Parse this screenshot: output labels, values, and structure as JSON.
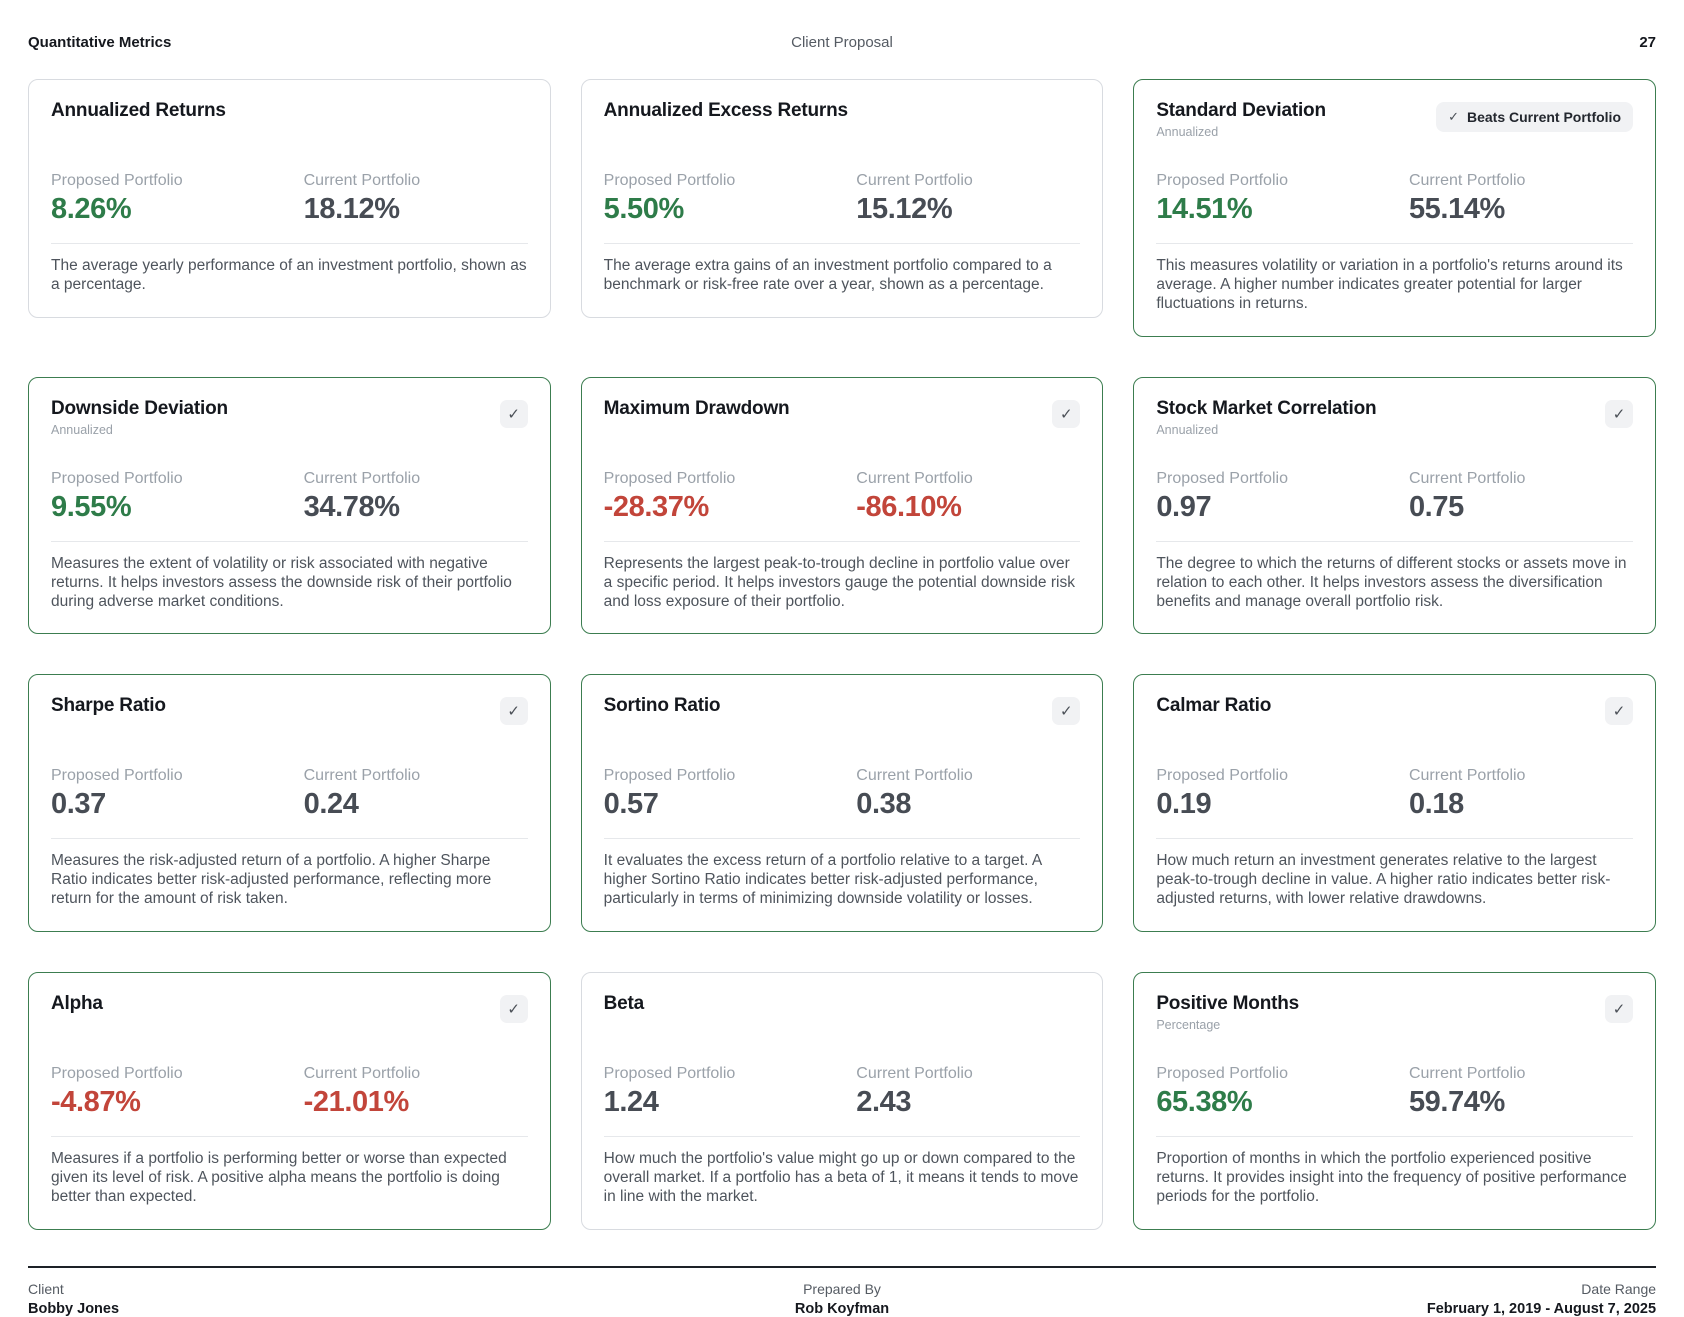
{
  "header": {
    "left": "Quantitative Metrics",
    "center": "Client Proposal",
    "page": "27"
  },
  "labels": {
    "proposed": "Proposed Portfolio",
    "current": "Current Portfolio"
  },
  "badge": {
    "check": "✓",
    "text": "Beats Current Portfolio"
  },
  "check_glyph": "✓",
  "colors": {
    "positive_green": "#2e7c49",
    "negative_red": "#c2453a",
    "neutral_dark": "#474c54",
    "highlight_border_green": "#3c7d50",
    "default_border_gray": "#d8dbe0"
  },
  "cards": [
    {
      "title": "Annualized Returns",
      "subtitle": null,
      "badge": false,
      "check": false,
      "highlight": false,
      "proposed": {
        "value": "8.26%",
        "tone": "green"
      },
      "current": {
        "value": "18.12%",
        "tone": "dark"
      },
      "description": "The average yearly performance of an investment portfolio, shown as a percentage."
    },
    {
      "title": "Annualized Excess Returns",
      "subtitle": null,
      "badge": false,
      "check": false,
      "highlight": false,
      "proposed": {
        "value": "5.50%",
        "tone": "green"
      },
      "current": {
        "value": "15.12%",
        "tone": "dark"
      },
      "description": "The average extra gains of an investment portfolio compared to a benchmark or risk-free rate over a year, shown as a percentage."
    },
    {
      "title": "Standard Deviation",
      "subtitle": "Annualized",
      "badge": true,
      "check": false,
      "highlight": true,
      "proposed": {
        "value": "14.51%",
        "tone": "green"
      },
      "current": {
        "value": "55.14%",
        "tone": "dark"
      },
      "description": "This measures volatility or variation in a portfolio's returns around its average. A higher number indicates greater potential for larger fluctuations in returns."
    },
    {
      "title": "Downside Deviation",
      "subtitle": "Annualized",
      "badge": false,
      "check": true,
      "highlight": true,
      "proposed": {
        "value": "9.55%",
        "tone": "green"
      },
      "current": {
        "value": "34.78%",
        "tone": "dark"
      },
      "description": "Measures the extent of volatility or risk associated with negative returns. It helps investors assess the downside risk of their portfolio during adverse market conditions."
    },
    {
      "title": "Maximum Drawdown",
      "subtitle": null,
      "badge": false,
      "check": true,
      "highlight": true,
      "proposed": {
        "value": "-28.37%",
        "tone": "red"
      },
      "current": {
        "value": "-86.10%",
        "tone": "red"
      },
      "description": "Represents the largest peak-to-trough decline in portfolio value over a specific period. It helps investors gauge the potential downside risk and loss exposure of their portfolio."
    },
    {
      "title": "Stock Market Correlation",
      "subtitle": "Annualized",
      "badge": false,
      "check": true,
      "highlight": true,
      "proposed": {
        "value": "0.97",
        "tone": "dark"
      },
      "current": {
        "value": "0.75",
        "tone": "dark"
      },
      "description": "The degree to which the returns of different stocks or assets move in relation to each other. It helps investors assess the diversification benefits and manage overall portfolio risk."
    },
    {
      "title": "Sharpe Ratio",
      "subtitle": null,
      "badge": false,
      "check": true,
      "highlight": true,
      "proposed": {
        "value": "0.37",
        "tone": "dark"
      },
      "current": {
        "value": "0.24",
        "tone": "dark"
      },
      "description": "Measures the risk-adjusted return of a portfolio. A higher Sharpe Ratio indicates better risk-adjusted performance, reflecting more return for the amount of risk taken."
    },
    {
      "title": "Sortino Ratio",
      "subtitle": null,
      "badge": false,
      "check": true,
      "highlight": true,
      "proposed": {
        "value": "0.57",
        "tone": "dark"
      },
      "current": {
        "value": "0.38",
        "tone": "dark"
      },
      "description": "It evaluates the excess return of a portfolio relative to a target. A higher Sortino Ratio indicates better risk-adjusted performance, particularly in terms of minimizing downside volatility or losses."
    },
    {
      "title": "Calmar Ratio",
      "subtitle": null,
      "badge": false,
      "check": true,
      "highlight": true,
      "proposed": {
        "value": "0.19",
        "tone": "dark"
      },
      "current": {
        "value": "0.18",
        "tone": "dark"
      },
      "description": "How much return an investment generates relative to the largest peak-to-trough decline in value. A higher ratio indicates better risk-adjusted returns, with lower relative drawdowns."
    },
    {
      "title": "Alpha",
      "subtitle": null,
      "badge": false,
      "check": true,
      "highlight": true,
      "proposed": {
        "value": "-4.87%",
        "tone": "red"
      },
      "current": {
        "value": "-21.01%",
        "tone": "red"
      },
      "description": "Measures if a portfolio is performing better or worse than expected given its level of risk. A positive alpha means the portfolio is doing better than expected."
    },
    {
      "title": "Beta",
      "subtitle": null,
      "badge": false,
      "check": false,
      "highlight": false,
      "proposed": {
        "value": "1.24",
        "tone": "dark"
      },
      "current": {
        "value": "2.43",
        "tone": "dark"
      },
      "description": "How much the portfolio's value might go up or down compared to the overall market. If a portfolio has a beta of 1, it means it tends to move in line with the market."
    },
    {
      "title": "Positive Months",
      "subtitle": "Percentage",
      "badge": false,
      "check": true,
      "highlight": true,
      "proposed": {
        "value": "65.38%",
        "tone": "green"
      },
      "current": {
        "value": "59.74%",
        "tone": "dark"
      },
      "description": "Proportion of months in which the portfolio experienced positive returns. It provides insight into the frequency of positive performance periods for the portfolio."
    }
  ],
  "footer": {
    "client_label": "Client",
    "client_name": "Bobby Jones",
    "prepared_label": "Prepared By",
    "prepared_name": "Rob Koyfman",
    "range_label": "Date Range",
    "range_value": "February 1, 2019 - August 7, 2025"
  }
}
